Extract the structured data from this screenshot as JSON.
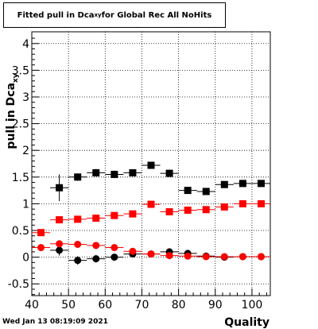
{
  "title": {
    "prefix": "Fitted pull in Dca",
    "subscript": "xy",
    "suffix": " for Global Rec All NoHits"
  },
  "footer": {
    "timestamp": "Wed Jan 13 08:19:09 2021"
  },
  "chart_data": {
    "type": "scatter",
    "xlabel": "Quality",
    "ylabel": "pull in Dca",
    "ylabel_subscript": "xy",
    "xlim": [
      40,
      105
    ],
    "ylim": [
      -0.72,
      4.22
    ],
    "xticks": [
      40,
      50,
      60,
      70,
      80,
      90,
      100
    ],
    "yticks": [
      -0.5,
      0,
      0.5,
      1,
      1.5,
      2,
      2.5,
      3,
      3.5,
      4
    ],
    "grid": true,
    "series": [
      {
        "marker": "square",
        "color": "#000000",
        "x": [
          47.5,
          52.5,
          57.5,
          62.5,
          67.5,
          72.5,
          77.5,
          82.5,
          87.5,
          92.5,
          97.5,
          102.5
        ],
        "y": [
          1.3,
          1.5,
          1.58,
          1.55,
          1.58,
          1.72,
          1.57,
          1.25,
          1.23,
          1.36,
          1.38,
          1.38
        ],
        "yerr": [
          0.25,
          0.07,
          0.07,
          0.07,
          0.05,
          0.05,
          0.05,
          0.03,
          0.03,
          0.03,
          0.03,
          0.03
        ]
      },
      {
        "marker": "square",
        "color": "#ff0000",
        "x": [
          42.5,
          47.5,
          52.5,
          57.5,
          62.5,
          67.5,
          72.5,
          77.5,
          82.5,
          87.5,
          92.5,
          97.5,
          102.5
        ],
        "y": [
          0.46,
          0.7,
          0.71,
          0.73,
          0.78,
          0.81,
          0.99,
          0.85,
          0.88,
          0.89,
          0.94,
          1.0,
          1.0
        ],
        "yerr": [
          0.05,
          0.04,
          0.03,
          0.03,
          0.03,
          0.03,
          0.03,
          0.03,
          0.02,
          0.02,
          0.02,
          0.02,
          0.02
        ]
      },
      {
        "marker": "circle",
        "color": "#000000",
        "x": [
          47.5,
          52.5,
          57.5,
          62.5,
          67.5,
          72.5,
          77.5,
          82.5,
          87.5,
          92.5,
          97.5,
          102.5
        ],
        "y": [
          0.13,
          -0.06,
          -0.03,
          0.0,
          0.06,
          0.06,
          0.1,
          0.07,
          0.02,
          0.0,
          0.01,
          0.01
        ],
        "yerr": [
          0.1,
          0.08,
          0.07,
          0.05,
          0.03,
          0.03,
          0.03,
          0.02,
          0.02,
          0.02,
          0.02,
          0.02
        ]
      },
      {
        "marker": "circle",
        "color": "#ff0000",
        "x": [
          42.5,
          47.5,
          52.5,
          57.5,
          62.5,
          67.5,
          72.5,
          77.5,
          82.5,
          87.5,
          92.5,
          97.5,
          102.5
        ],
        "y": [
          0.18,
          0.25,
          0.24,
          0.22,
          0.18,
          0.11,
          0.06,
          0.03,
          0.02,
          0.01,
          0.01,
          0.01,
          0.01
        ],
        "yerr": [
          0.02,
          0.02,
          0.02,
          0.02,
          0.02,
          0.02,
          0.01,
          0.01,
          0.01,
          0.01,
          0.01,
          0.01,
          0.01
        ]
      }
    ]
  }
}
